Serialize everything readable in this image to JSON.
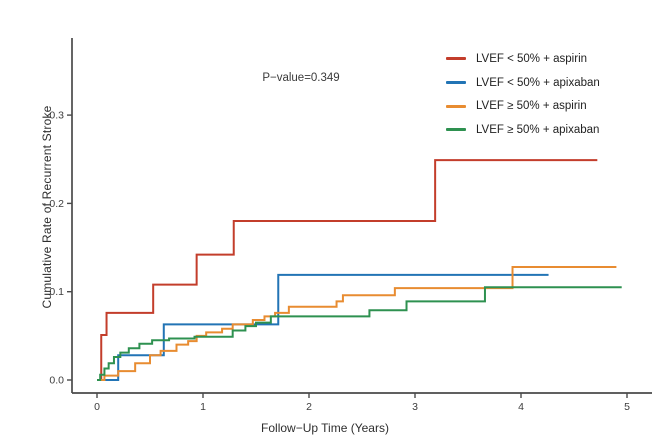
{
  "figure": {
    "background": "#ffffff",
    "axis_color": "#4a4a4a",
    "tick_text_color": "#3d3d3d"
  },
  "chart_data": {
    "type": "line",
    "subtype": "kaplan-meier-step-curves",
    "title": "",
    "xlabel": "Follow−Up Time (Years)",
    "ylabel": "Cumulative Rate of Recurrent Stroke",
    "annotation": "P−value=0.349",
    "xlim": [
      -0.25,
      5.25
    ],
    "ylim": [
      0,
      0.39
    ],
    "grid": "off",
    "legend_position": "top-right",
    "x_ticks": [
      "0",
      "1",
      "2",
      "3",
      "4",
      "5"
    ],
    "x_tick_values": [
      0,
      1,
      2,
      3,
      4,
      5
    ],
    "y_ticks": [
      "0.0",
      "0.1",
      "0.2",
      "0.3"
    ],
    "y_tick_values": [
      0.0,
      0.1,
      0.2,
      0.3
    ],
    "series": [
      {
        "name": "LVEF < 50% + aspirin",
        "color": "#c33d2b",
        "end": 4.72,
        "points": [
          [
            0,
            0
          ],
          [
            0.04,
            0.051
          ],
          [
            0.09,
            0.076
          ],
          [
            0.53,
            0.108
          ],
          [
            0.94,
            0.142
          ],
          [
            1.29,
            0.18
          ],
          [
            3.19,
            0.249
          ]
        ]
      },
      {
        "name": "LVEF < 50% + apixaban",
        "color": "#2274b5",
        "end": 4.26,
        "points": [
          [
            0,
            0
          ],
          [
            0.2,
            0.028
          ],
          [
            0.63,
            0.063
          ],
          [
            1.71,
            0.119
          ]
        ]
      },
      {
        "name": "LVEF ≥ 50% + aspirin",
        "color": "#e88c31",
        "end": 4.9,
        "points": [
          [
            0,
            0
          ],
          [
            0.07,
            0.005
          ],
          [
            0.2,
            0.01
          ],
          [
            0.36,
            0.019
          ],
          [
            0.5,
            0.028
          ],
          [
            0.6,
            0.033
          ],
          [
            0.75,
            0.04
          ],
          [
            0.86,
            0.044
          ],
          [
            0.94,
            0.05
          ],
          [
            1.03,
            0.054
          ],
          [
            1.18,
            0.058
          ],
          [
            1.28,
            0.063
          ],
          [
            1.47,
            0.068
          ],
          [
            1.58,
            0.072
          ],
          [
            1.68,
            0.076
          ],
          [
            1.81,
            0.083
          ],
          [
            2.26,
            0.089
          ],
          [
            2.32,
            0.096
          ],
          [
            2.81,
            0.104
          ],
          [
            3.92,
            0.128
          ]
        ]
      },
      {
        "name": "LVEF ≥ 50% + apixaban",
        "color": "#2e9150",
        "end": 4.95,
        "points": [
          [
            0,
            0
          ],
          [
            0.03,
            0.006
          ],
          [
            0.07,
            0.013
          ],
          [
            0.11,
            0.019
          ],
          [
            0.16,
            0.026
          ],
          [
            0.22,
            0.031
          ],
          [
            0.3,
            0.036
          ],
          [
            0.4,
            0.041
          ],
          [
            0.52,
            0.045
          ],
          [
            0.68,
            0.047
          ],
          [
            0.92,
            0.049
          ],
          [
            1.28,
            0.056
          ],
          [
            1.4,
            0.061
          ],
          [
            1.5,
            0.065
          ],
          [
            1.64,
            0.072
          ],
          [
            2.57,
            0.079
          ],
          [
            2.92,
            0.089
          ],
          [
            3.66,
            0.105
          ]
        ]
      }
    ]
  }
}
